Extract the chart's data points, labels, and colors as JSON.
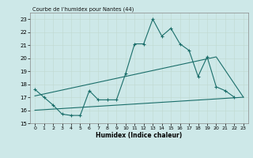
{
  "title": "Courbe de l’humidex pour Nantes (44)",
  "xlabel": "Humidex (Indice chaleur)",
  "xlim": [
    -0.5,
    23.5
  ],
  "ylim": [
    15,
    23.5
  ],
  "yticks": [
    15,
    16,
    17,
    18,
    19,
    20,
    21,
    22,
    23
  ],
  "xticks": [
    0,
    1,
    2,
    3,
    4,
    5,
    6,
    7,
    8,
    9,
    10,
    11,
    12,
    13,
    14,
    15,
    16,
    17,
    18,
    19,
    20,
    21,
    22,
    23
  ],
  "bg_color": "#cde8e8",
  "line_color": "#1a6e6a",
  "line1_x": [
    0,
    1,
    2,
    3,
    4,
    5,
    6,
    7,
    8,
    9,
    10,
    11,
    12,
    13,
    14,
    15,
    16,
    17,
    18,
    19,
    20,
    21,
    22
  ],
  "line1_y": [
    17.6,
    17.0,
    16.4,
    15.7,
    15.6,
    15.6,
    17.5,
    16.8,
    16.8,
    16.8,
    18.8,
    21.1,
    21.1,
    23.0,
    21.7,
    22.3,
    21.1,
    20.6,
    18.6,
    20.1,
    17.8,
    17.5,
    17.0
  ],
  "line2_x": [
    0,
    23
  ],
  "line2_y": [
    16.0,
    17.0
  ],
  "line3_x": [
    0,
    20,
    23
  ],
  "line3_y": [
    17.1,
    20.1,
    17.0
  ]
}
